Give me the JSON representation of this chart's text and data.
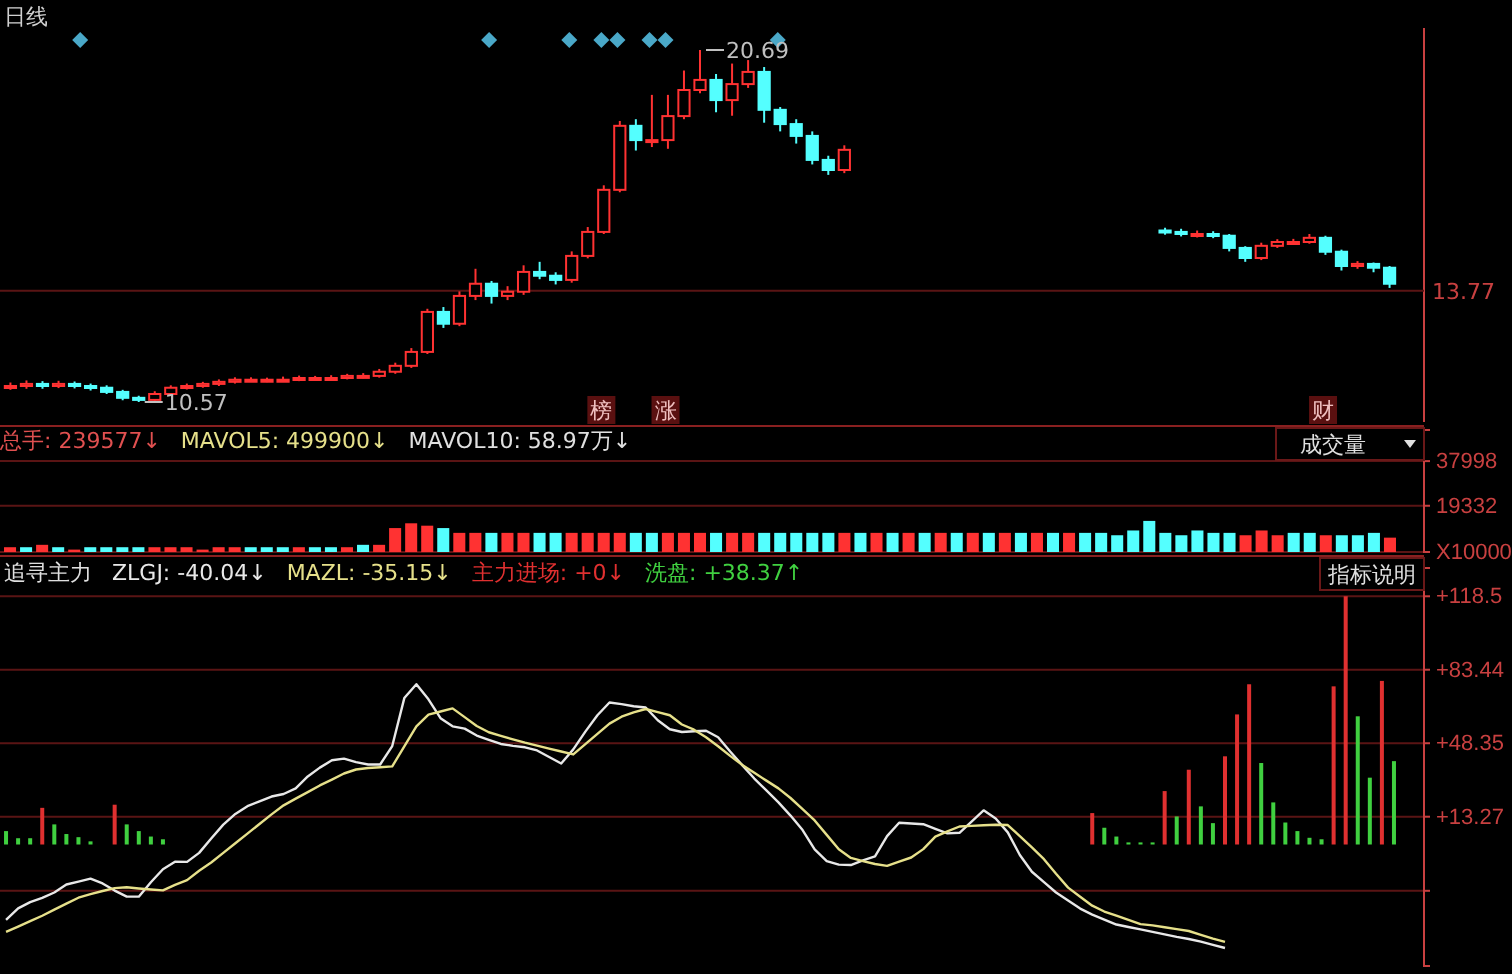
{
  "chart_data": [
    {
      "type": "candlestick",
      "title": "日线",
      "categories": [
        null,
        null,
        null,
        null,
        null,
        null,
        null,
        null,
        null,
        null,
        null,
        null,
        null,
        null,
        null,
        null,
        null,
        null,
        null,
        null,
        null,
        null,
        null,
        null,
        null,
        null,
        null,
        null,
        null,
        null,
        null,
        null,
        null,
        null,
        null,
        null,
        null,
        null,
        null,
        null,
        null,
        null,
        null,
        null,
        null,
        null,
        null,
        null,
        null,
        null,
        null,
        null,
        null,
        null,
        null,
        null,
        null,
        null,
        null,
        null,
        null,
        null,
        null,
        null,
        null,
        null,
        null,
        null,
        null,
        null,
        null,
        null,
        null,
        null,
        null,
        null,
        null,
        null,
        null,
        null,
        null,
        null,
        null,
        null,
        null,
        null,
        null
      ],
      "ohlc": [
        [
          11.0,
          11.13,
          10.92,
          11.03
        ],
        [
          11.03,
          11.19,
          10.95,
          11.09
        ],
        [
          11.09,
          11.17,
          10.95,
          11.03
        ],
        [
          11.03,
          11.18,
          10.97,
          11.09
        ],
        [
          11.09,
          11.16,
          10.96,
          11.03
        ],
        [
          11.03,
          11.1,
          10.9,
          10.98
        ],
        [
          10.98,
          11.05,
          10.8,
          10.86
        ],
        [
          10.86,
          10.92,
          10.62,
          10.69
        ],
        [
          10.69,
          10.75,
          10.57,
          10.63
        ],
        [
          10.63,
          10.88,
          10.6,
          10.8
        ],
        [
          10.8,
          11.05,
          10.75,
          10.98
        ],
        [
          10.98,
          11.1,
          10.93,
          11.03
        ],
        [
          11.03,
          11.15,
          10.98,
          11.09
        ],
        [
          11.09,
          11.22,
          11.03,
          11.15
        ],
        [
          11.15,
          11.28,
          11.1,
          11.21
        ],
        [
          11.21,
          11.28,
          11.15,
          11.21
        ],
        [
          11.21,
          11.27,
          11.14,
          11.21
        ],
        [
          11.21,
          11.3,
          11.15,
          11.21
        ],
        [
          11.21,
          11.33,
          11.17,
          11.26
        ],
        [
          11.26,
          11.32,
          11.2,
          11.26
        ],
        [
          11.26,
          11.34,
          11.19,
          11.26
        ],
        [
          11.26,
          11.38,
          11.22,
          11.32
        ],
        [
          11.32,
          11.4,
          11.25,
          11.32
        ],
        [
          11.32,
          11.52,
          11.27,
          11.44
        ],
        [
          11.44,
          11.7,
          11.38,
          11.61
        ],
        [
          11.61,
          12.12,
          11.55,
          12.01
        ],
        [
          12.01,
          13.25,
          11.95,
          13.16
        ],
        [
          13.16,
          13.3,
          12.7,
          12.82
        ],
        [
          12.82,
          13.75,
          12.75,
          13.62
        ],
        [
          13.62,
          14.4,
          13.5,
          13.97
        ],
        [
          13.97,
          14.05,
          13.4,
          13.62
        ],
        [
          13.62,
          13.9,
          13.5,
          13.74
        ],
        [
          13.74,
          14.5,
          13.65,
          14.31
        ],
        [
          14.31,
          14.6,
          14.1,
          14.2
        ],
        [
          14.2,
          14.3,
          13.95,
          14.08
        ],
        [
          14.08,
          14.9,
          14.0,
          14.77
        ],
        [
          14.77,
          15.6,
          14.7,
          15.46
        ],
        [
          15.46,
          16.8,
          15.4,
          16.67
        ],
        [
          16.67,
          18.65,
          16.6,
          18.51
        ],
        [
          18.51,
          18.7,
          17.8,
          18.1
        ],
        [
          18.1,
          19.4,
          17.9,
          18.1
        ],
        [
          18.1,
          19.4,
          17.85,
          18.79
        ],
        [
          18.79,
          20.1,
          18.7,
          19.54
        ],
        [
          19.54,
          20.69,
          19.45,
          19.83
        ],
        [
          19.83,
          20.0,
          18.9,
          19.25
        ],
        [
          19.25,
          20.3,
          18.8,
          19.71
        ],
        [
          19.71,
          20.4,
          19.6,
          20.06
        ],
        [
          20.06,
          20.2,
          18.6,
          18.97
        ],
        [
          18.97,
          19.05,
          18.35,
          18.56
        ],
        [
          18.56,
          18.7,
          18.0,
          18.22
        ],
        [
          18.22,
          18.35,
          17.4,
          17.53
        ],
        [
          17.53,
          17.65,
          17.1,
          17.24
        ],
        [
          17.24,
          17.95,
          17.15,
          17.82
        ],
        null,
        null,
        null,
        null,
        null,
        null,
        null,
        null,
        null,
        null,
        null,
        null,
        null,
        null,
        null,
        null,
        null,
        null,
        null,
        [
          15.5,
          15.58,
          15.38,
          15.46
        ],
        [
          15.46,
          15.55,
          15.33,
          15.4
        ],
        [
          15.4,
          15.5,
          15.3,
          15.4
        ],
        [
          15.4,
          15.48,
          15.28,
          15.35
        ],
        [
          15.35,
          15.4,
          14.9,
          15.0
        ],
        [
          15.0,
          15.05,
          14.6,
          14.71
        ],
        [
          14.71,
          15.15,
          14.65,
          15.06
        ],
        [
          15.06,
          15.25,
          15.0,
          15.17
        ],
        [
          15.17,
          15.26,
          15.1,
          15.17
        ],
        [
          15.17,
          15.4,
          15.12,
          15.29
        ],
        [
          15.29,
          15.35,
          14.8,
          14.89
        ],
        [
          14.89,
          14.95,
          14.35,
          14.48
        ],
        [
          14.48,
          14.62,
          14.4,
          14.54
        ],
        [
          14.54,
          14.58,
          14.3,
          14.43
        ],
        [
          14.43,
          14.48,
          13.85,
          13.97
        ]
      ],
      "ref_lines": [
        {
          "axis": "y",
          "value": 13.77,
          "label": "13.77"
        }
      ],
      "annotations": [
        "20.69",
        "10.57",
        "榜",
        "涨",
        "财"
      ]
    },
    {
      "type": "bar",
      "categories": [
        null,
        null,
        null,
        null,
        null,
        null,
        null,
        null,
        null,
        null,
        null,
        null,
        null,
        null,
        null,
        null,
        null,
        null,
        null,
        null,
        null,
        null,
        null,
        null,
        null,
        null,
        null,
        null,
        null,
        null,
        null,
        null,
        null,
        null,
        null,
        null,
        null,
        null,
        null,
        null,
        null,
        null,
        null,
        null,
        null,
        null,
        null,
        null,
        null,
        null,
        null,
        null,
        null,
        null,
        null,
        null,
        null,
        null,
        null,
        null,
        null,
        null,
        null,
        null,
        null,
        null,
        null,
        null,
        null,
        null,
        null,
        null,
        null,
        null,
        null,
        null,
        null,
        null,
        null,
        null,
        null,
        null,
        null,
        null,
        null,
        null,
        null
      ],
      "values": [
        2000,
        2000,
        3000,
        2000,
        1000,
        2000,
        2000,
        2000,
        2000,
        2000,
        2000,
        2000,
        1000,
        2000,
        2000,
        2000,
        2000,
        2000,
        2000,
        2000,
        2000,
        2000,
        3000,
        3000,
        10000,
        12000,
        11000,
        10000,
        8000,
        8000,
        8000,
        8000,
        8000,
        8000,
        8000,
        8000,
        8000,
        8000,
        8000,
        8000,
        8000,
        8000,
        8000,
        8000,
        8000,
        8000,
        8000,
        8000,
        8000,
        8000,
        8000,
        8000,
        8000,
        8000,
        8000,
        8000,
        8000,
        8000,
        8000,
        8000,
        8000,
        8000,
        8000,
        8000,
        8000,
        8000,
        8000,
        8000,
        8000,
        7000,
        9000,
        13000,
        8000,
        7000,
        9000,
        8000,
        8000,
        7000,
        9000,
        7000,
        8000,
        8000,
        7000,
        7000,
        7000,
        8000,
        6000
      ],
      "colors": [
        "#ff3232",
        "#54ffff",
        "#ff3232",
        "#54ffff",
        "#ff3232",
        "#54ffff",
        "#54ffff",
        "#54ffff",
        "#54ffff",
        "#ff3232",
        "#ff3232",
        "#ff3232",
        "#ff3232",
        "#ff3232",
        "#ff3232",
        "#54ffff",
        "#54ffff",
        "#54ffff",
        "#ff3232",
        "#54ffff",
        "#54ffff",
        "#ff3232",
        "#54ffff",
        "#ff3232",
        "#ff3232",
        "#ff3232",
        "#ff3232",
        "#54ffff",
        "#ff3232",
        "#ff3232",
        "#54ffff",
        "#ff3232",
        "#ff3232",
        "#54ffff",
        "#54ffff",
        "#ff3232",
        "#ff3232",
        "#ff3232",
        "#ff3232",
        "#54ffff",
        "#54ffff",
        "#ff3232",
        "#ff3232",
        "#ff3232",
        "#54ffff",
        "#ff3232",
        "#ff3232",
        "#54ffff",
        "#54ffff",
        "#54ffff",
        "#54ffff",
        "#54ffff",
        "#ff3232",
        "#54ffff",
        "#ff3232",
        "#54ffff",
        "#ff3232",
        "#54ffff",
        "#ff3232",
        "#54ffff",
        "#ff3232",
        "#54ffff",
        "#ff3232",
        "#54ffff",
        "#ff3232",
        "#54ffff",
        "#ff3232",
        "#54ffff",
        "#54ffff",
        "#54ffff",
        "#54ffff",
        "#54ffff",
        "#54ffff",
        "#54ffff",
        "#54ffff",
        "#54ffff",
        "#54ffff",
        "#ff3232",
        "#ff3232",
        "#ff3232",
        "#54ffff",
        "#54ffff",
        "#ff3232",
        "#54ffff",
        "#54ffff",
        "#54ffff",
        "#ff3232"
      ],
      "ylim": [
        0,
        51000
      ],
      "yticks": [
        {
          "value": 0,
          "label": "X10000"
        },
        19332,
        37998
      ],
      "grid": "y",
      "annotations": [
        "总手: 239577↓",
        "MAVOL5: 499900↓",
        "MAVOL10: 58.97万↓",
        "成交量"
      ]
    },
    {
      "type": "line",
      "title": "追寻主力",
      "grid": "y",
      "ylim": [
        -58,
        132
      ],
      "categories": [
        null,
        null,
        null,
        null,
        null,
        null,
        null,
        null,
        null,
        null,
        null,
        null,
        null,
        null,
        null,
        null,
        null,
        null,
        null,
        null,
        null,
        null,
        null,
        null,
        null,
        null,
        null,
        null,
        null,
        null,
        null,
        null,
        null,
        null,
        null,
        null,
        null,
        null,
        null,
        null,
        null,
        null,
        null,
        null,
        null,
        null,
        null,
        null,
        null,
        null,
        null,
        null,
        null,
        null,
        null,
        null,
        null,
        null,
        null,
        null,
        null,
        null,
        null,
        null,
        null,
        null,
        null,
        null,
        null,
        null,
        null,
        null,
        null,
        null,
        null,
        null,
        null,
        null,
        null,
        null,
        null,
        null,
        null,
        null,
        null,
        null,
        null,
        null,
        null,
        null,
        null,
        null,
        null,
        null,
        null,
        null,
        null,
        null,
        null,
        null,
        null,
        null,
        null,
        null,
        null,
        null,
        null,
        null,
        null,
        null,
        null,
        null,
        null,
        null,
        null,
        null
      ],
      "yticks": [
        {
          "value": -22.1,
          "label": null
        },
        {
          "value": 13.27,
          "label": "+13.27"
        },
        {
          "value": 48.35,
          "label": "+48.35"
        },
        {
          "value": 83.44,
          "label": "+83.44"
        },
        {
          "value": 118.5,
          "label": "+118.5"
        }
      ],
      "series": [
        {
          "name": "ZLGJ: -40.04↓",
          "type": "line",
          "color": "#e8e8e8",
          "values": [
            -36,
            -30.5,
            -27.5,
            -25.5,
            -22.9,
            -19.1,
            -17.7,
            -16.3,
            -18.6,
            -22,
            -24.9,
            -24.9,
            -18,
            -11.8,
            -8.2,
            -8.3,
            -4,
            2.9,
            9.5,
            14.6,
            18.3,
            20.6,
            22.9,
            24.1,
            26.8,
            32.5,
            36.7,
            40.2,
            41,
            39.3,
            38.2,
            38.2,
            47,
            69.9,
            76.5,
            69.3,
            60.3,
            56.4,
            55.3,
            52,
            50,
            48,
            47.1,
            46.4,
            44.9,
            41.8,
            38.7,
            45.4,
            53.9,
            61.7,
            67.8,
            67,
            66,
            65.4,
            59.3,
            55,
            53.7,
            54.1,
            54.3,
            51.2,
            44.4,
            37.9,
            31.5,
            25.8,
            20.1,
            13.8,
            6.9,
            -2.3,
            -7.9,
            -9.6,
            -9.8,
            -7.6,
            -5.7,
            4,
            10.4,
            10,
            9.7,
            7.5,
            5.3,
            5.6,
            10.9,
            16.3,
            12.4,
            5.8,
            -5,
            -13,
            -18,
            -22.9,
            -26.7,
            -30.6,
            -33.5,
            -35.9,
            -38.2,
            -39.4,
            -40.5,
            -41.7,
            -42.9,
            -44.1,
            -45.1,
            -46.4,
            -47.9,
            -49.4,
            null,
            null,
            null,
            null,
            null,
            null,
            null,
            null,
            null,
            null,
            null,
            null,
            null,
            null
          ]
        },
        {
          "name": "MAZL: -35.15↓",
          "type": "line",
          "color": "#e6e08a",
          "values": [
            -41.7,
            -39.2,
            -36.6,
            -34,
            -31.1,
            -28.2,
            -25.4,
            -23.7,
            -22.2,
            -20.8,
            -20.4,
            -21,
            -21.5,
            -21.9,
            -19.3,
            -17,
            -12.5,
            -8.6,
            -4,
            0.6,
            5.2,
            9.8,
            14.4,
            18.7,
            21.9,
            25,
            28.2,
            31,
            33.9,
            35.8,
            36.5,
            36.9,
            37.3,
            46.9,
            56.4,
            62,
            63.5,
            65,
            60.8,
            56.6,
            53.6,
            51.9,
            50.2,
            48.6,
            47.2,
            45.8,
            44.4,
            43,
            47.9,
            52.8,
            57.7,
            61,
            63.1,
            64.7,
            63.2,
            61.7,
            57.3,
            54.8,
            51.2,
            46.9,
            42.3,
            38,
            34.2,
            30.5,
            26.8,
            22.2,
            16.9,
            11.5,
            4.6,
            -2.3,
            -6.4,
            -7.9,
            -9.3,
            -10.2,
            -8.2,
            -6.2,
            -2.2,
            3.8,
            6.3,
            8.6,
            8.9,
            9.2,
            9.4,
            9.3,
            4,
            -1.4,
            -7,
            -14,
            -20.6,
            -24.9,
            -29.2,
            -32,
            -34,
            -36,
            -38,
            -38.6,
            -39.5,
            -40.4,
            -41.3,
            -43.1,
            -44.9,
            -46.5,
            null,
            null,
            null,
            null,
            null,
            null,
            null,
            null,
            null,
            null,
            null,
            null,
            null,
            null
          ]
        },
        {
          "name": "主力进场: +0↓",
          "type": "bar",
          "color": "#e03030",
          "values": [
            null,
            null,
            null,
            17.5,
            null,
            null,
            null,
            null,
            null,
            19,
            null,
            null,
            null,
            null,
            null,
            null,
            null,
            null,
            null,
            null,
            null,
            null,
            null,
            null,
            null,
            null,
            null,
            null,
            null,
            null,
            null,
            null,
            null,
            null,
            null,
            null,
            null,
            null,
            null,
            null,
            null,
            null,
            null,
            null,
            null,
            null,
            null,
            null,
            null,
            null,
            null,
            null,
            null,
            null,
            null,
            null,
            null,
            null,
            null,
            null,
            null,
            null,
            null,
            null,
            null,
            null,
            null,
            null,
            null,
            null,
            null,
            null,
            null,
            null,
            null,
            null,
            null,
            null,
            null,
            null,
            null,
            null,
            null,
            null,
            null,
            null,
            null,
            null,
            null,
            null,
            15.0,
            null,
            null,
            null,
            null,
            null,
            25.5,
            null,
            35.7,
            null,
            null,
            42.1,
            62.1,
            76.5,
            null,
            null,
            null,
            null,
            null,
            null,
            75.5,
            118.5,
            null,
            null,
            78.1,
            null
          ]
        },
        {
          "name": "洗盘: +38.37↑",
          "type": "bar",
          "color": "#40d040",
          "values": [
            6.4,
            3,
            3,
            null,
            9.6,
            5,
            3.5,
            1.5,
            null,
            null,
            9.6,
            6.4,
            3.8,
            2.5,
            null,
            null,
            null,
            null,
            null,
            null,
            null,
            null,
            null,
            null,
            null,
            null,
            null,
            null,
            null,
            null,
            null,
            null,
            null,
            null,
            null,
            null,
            null,
            null,
            null,
            null,
            null,
            null,
            null,
            null,
            null,
            null,
            null,
            null,
            null,
            null,
            null,
            null,
            null,
            null,
            null,
            null,
            null,
            null,
            null,
            null,
            null,
            null,
            null,
            null,
            null,
            null,
            null,
            null,
            null,
            null,
            null,
            null,
            null,
            null,
            null,
            null,
            null,
            null,
            null,
            null,
            null,
            null,
            null,
            null,
            null,
            null,
            null,
            null,
            null,
            null,
            null,
            8.0,
            3.8,
            1,
            1,
            1,
            null,
            13.4,
            null,
            18.2,
            10.2,
            null,
            null,
            null,
            38.9,
            20.1,
            10.5,
            6.4,
            3.2,
            2.5,
            null,
            null,
            61.2,
            31.9,
            null,
            39.8
          ]
        }
      ],
      "annotations": [
        "指标说明"
      ]
    }
  ]
}
